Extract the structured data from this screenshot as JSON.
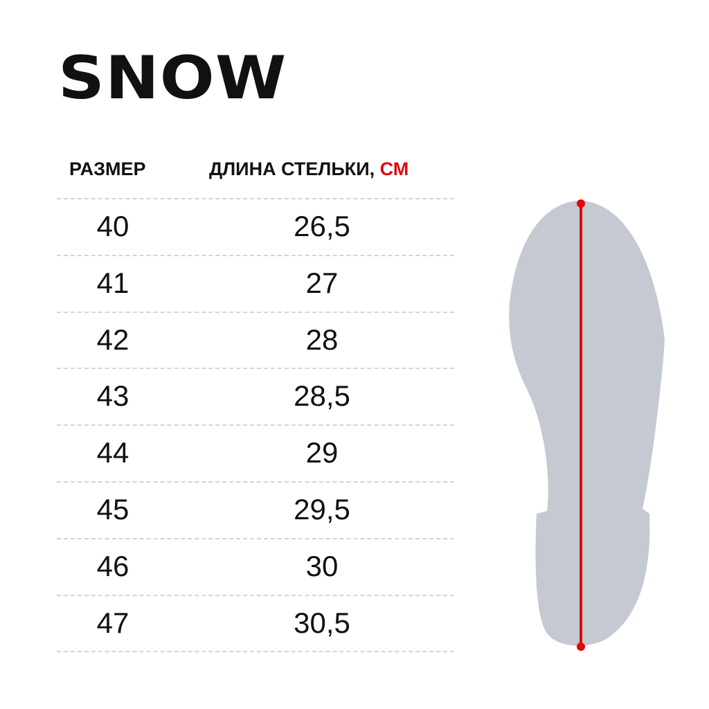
{
  "title": "SNOW",
  "table": {
    "headers": {
      "size": "РАЗМЕР",
      "length": "ДЛИНА СТЕЛЬКИ, ",
      "unit": "СМ"
    },
    "rows": [
      {
        "size": "40",
        "length": "26,5"
      },
      {
        "size": "41",
        "length": "27"
      },
      {
        "size": "42",
        "length": "28"
      },
      {
        "size": "43",
        "length": "28,5"
      },
      {
        "size": "44",
        "length": "29"
      },
      {
        "size": "45",
        "length": "29,5"
      },
      {
        "size": "46",
        "length": "30"
      },
      {
        "size": "47",
        "length": "30,5"
      }
    ]
  },
  "colors": {
    "accent": "#e3090b",
    "insole": "#c5c9d2",
    "divider": "#d4d4d4"
  },
  "icons": {
    "illustration": "insole-length-icon"
  }
}
